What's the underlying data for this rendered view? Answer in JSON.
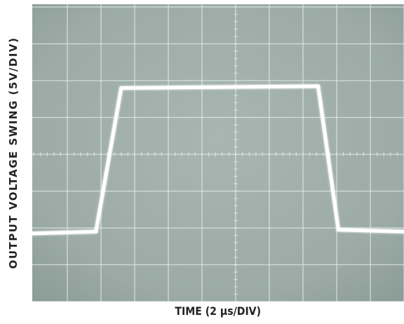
{
  "chart_data": {
    "type": "line",
    "title": "",
    "xlabel": "TIME (2 µs/DIV)",
    "ylabel": "OUTPUT VOLTAGE SWING (5V/DIV)",
    "grid": true,
    "x_divisions": 10,
    "y_divisions": 8,
    "xlim": [
      0,
      10
    ],
    "ylim": [
      0,
      8
    ],
    "series": [
      {
        "x": [
          0,
          0.85,
          1.6,
          7.45,
          8.05,
          10
        ],
        "y": [
          1.85,
          1.9,
          5.8,
          5.85,
          1.95,
          1.9
        ]
      }
    ],
    "colors": {
      "screen": "#9caba6",
      "grid": "#e6eeea",
      "trace": "#ffffff"
    }
  }
}
